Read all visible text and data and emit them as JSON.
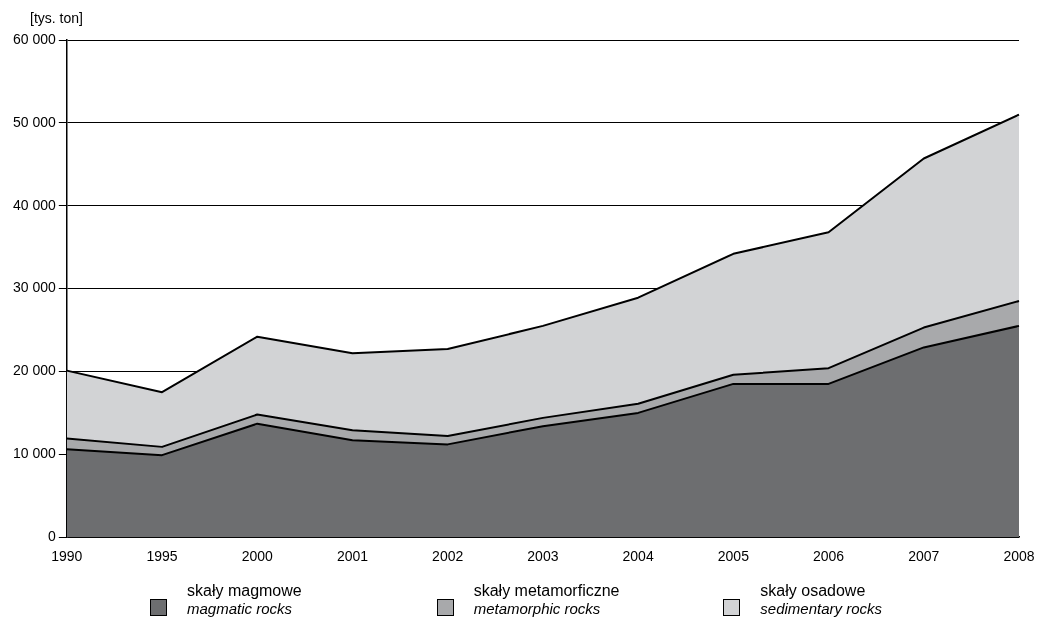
{
  "chart_data": {
    "type": "area",
    "stacked": true,
    "ylabel": "[tys. ton]",
    "categories": [
      "1990",
      "1995",
      "2000",
      "2001",
      "2002",
      "2003",
      "2004",
      "2005",
      "2006",
      "2007",
      "2008"
    ],
    "series": [
      {
        "name": "skały magmowe\nmagmatic rocks",
        "color": "#6d6e70",
        "values": [
          10600,
          9900,
          13700,
          11700,
          11200,
          13400,
          15000,
          18500,
          18500,
          22900,
          25500
        ]
      },
      {
        "name": "skały metamorficzne\nmetamorphic rocks",
        "color": "#a8a9ab",
        "values": [
          1300,
          1000,
          1100,
          1200,
          1000,
          1000,
          1100,
          1100,
          1900,
          2400,
          3000
        ]
      },
      {
        "name": "skały osadowe\nsedimentary rocks",
        "color": "#d2d3d5",
        "values": [
          8200,
          6600,
          9400,
          9300,
          10500,
          11100,
          12800,
          14600,
          16400,
          20400,
          22500
        ]
      }
    ],
    "ylim": [
      0,
      60000
    ],
    "yticks": [
      {
        "value": 0,
        "label": "0"
      },
      {
        "value": 10000,
        "label": "10 000"
      },
      {
        "value": 20000,
        "label": "20 000"
      },
      {
        "value": 30000,
        "label": "30 000"
      },
      {
        "value": 40000,
        "label": "40 000"
      },
      {
        "value": 50000,
        "label": "50 000"
      },
      {
        "value": 60000,
        "label": "60 000"
      }
    ],
    "grid": "y",
    "legend": "bottom",
    "marker": "none",
    "line_style": "solid"
  }
}
